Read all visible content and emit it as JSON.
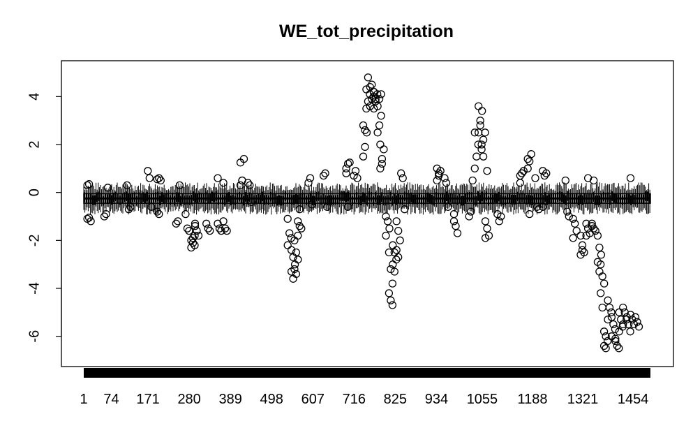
{
  "chart_data": {
    "type": "boxplot",
    "title": "WE_tot_precipitation",
    "xlabel": "",
    "ylabel": "",
    "n_boxes": 1500,
    "xlim": [
      1,
      1500
    ],
    "ylim": [
      -7,
      5
    ],
    "x_tick_labels": [
      "1",
      "74",
      "171",
      "280",
      "389",
      "498",
      "607",
      "716",
      "825",
      "934",
      "1055",
      "1188",
      "1321",
      "1454"
    ],
    "x_tick_positions": [
      1,
      74,
      171,
      280,
      389,
      498,
      607,
      716,
      825,
      934,
      1055,
      1188,
      1321,
      1454
    ],
    "y_ticks": [
      -6,
      -4,
      -2,
      0,
      2,
      4
    ],
    "y_tick_labels": [
      "-6",
      "-4",
      "-2",
      "0",
      "2",
      "4"
    ],
    "grid": false,
    "legend": "none",
    "box_band": {
      "median": -0.25,
      "q1": -0.45,
      "q3": -0.05,
      "whisker_low": -0.75,
      "whisker_high": 0.25
    },
    "outlier_groups": [
      {
        "x": 15,
        "values": [
          0.3,
          0.35,
          -1.2,
          -1.1,
          -1.05
        ]
      },
      {
        "x": 60,
        "values": [
          -1.0,
          -0.9,
          0.2
        ]
      },
      {
        "x": 120,
        "values": [
          0.3,
          -0.7,
          -0.6
        ]
      },
      {
        "x": 175,
        "values": [
          0.9,
          0.6,
          -0.6
        ]
      },
      {
        "x": 200,
        "values": [
          0.55,
          0.6,
          0.5,
          -0.8,
          -0.9
        ]
      },
      {
        "x": 250,
        "values": [
          -1.3,
          -1.2,
          0.3
        ]
      },
      {
        "x": 275,
        "values": [
          -0.9,
          -1.5,
          -1.6
        ]
      },
      {
        "x": 290,
        "values": [
          -2.0,
          -2.1,
          -2.2,
          -2.3,
          -1.9,
          -1.8
        ]
      },
      {
        "x": 300,
        "values": [
          -1.4,
          -1.6,
          -1.8,
          -1.3
        ]
      },
      {
        "x": 330,
        "values": [
          -1.3,
          -1.5,
          -1.6
        ]
      },
      {
        "x": 360,
        "values": [
          -1.3,
          -1.5,
          -1.6,
          0.6
        ]
      },
      {
        "x": 375,
        "values": [
          -1.2,
          -1.5,
          -1.6,
          0.4
        ]
      },
      {
        "x": 420,
        "values": [
          0.3,
          0.5,
          1.4,
          1.25,
          0.5
        ]
      },
      {
        "x": 440,
        "values": [
          0.4,
          0.3,
          -0.4
        ]
      },
      {
        "x": 545,
        "values": [
          -1.1,
          -1.7,
          -1.9,
          -2.2
        ]
      },
      {
        "x": 555,
        "values": [
          -2.4,
          -2.7,
          -3.0,
          -3.3,
          -3.6
        ]
      },
      {
        "x": 563,
        "values": [
          -2.0,
          -2.5,
          -2.8,
          -3.2,
          -3.4
        ]
      },
      {
        "x": 572,
        "values": [
          -1.2,
          -1.4,
          -1.5,
          -1.8,
          -0.7
        ]
      },
      {
        "x": 600,
        "values": [
          0.4,
          0.6,
          -0.5
        ]
      },
      {
        "x": 640,
        "values": [
          0.7,
          0.8,
          -0.6
        ]
      },
      {
        "x": 700,
        "values": [
          1.0,
          1.2,
          1.25,
          0.8,
          -0.6
        ]
      },
      {
        "x": 720,
        "values": [
          0.7,
          0.9,
          0.6
        ]
      },
      {
        "x": 745,
        "values": [
          1.5,
          1.9,
          2.5,
          2.8,
          2.6
        ]
      },
      {
        "x": 753,
        "values": [
          3.5,
          3.8,
          4.1,
          4.3,
          4.8
        ]
      },
      {
        "x": 763,
        "values": [
          3.6,
          3.9,
          4.2,
          4.4,
          4.5,
          4.0
        ]
      },
      {
        "x": 773,
        "values": [
          3.5,
          3.9,
          4.1,
          4.2,
          3.8
        ]
      },
      {
        "x": 783,
        "values": [
          2.5,
          2.8,
          3.2,
          3.6,
          3.9,
          4.1
        ]
      },
      {
        "x": 790,
        "values": [
          1.0,
          1.4,
          1.8,
          2.0,
          1.2
        ]
      },
      {
        "x": 805,
        "values": [
          -1.0,
          -1.2,
          -1.5,
          -1.8
        ]
      },
      {
        "x": 813,
        "values": [
          -2.5,
          -3.2,
          -3.8,
          -4.2,
          -4.5,
          -4.7
        ]
      },
      {
        "x": 823,
        "values": [
          -2.2,
          -2.5,
          -2.8,
          -3.0,
          -3.3
        ]
      },
      {
        "x": 833,
        "values": [
          -1.2,
          -1.6,
          -2.0,
          -2.4,
          -2.7
        ]
      },
      {
        "x": 845,
        "values": [
          0.8,
          0.6,
          -0.7
        ]
      },
      {
        "x": 940,
        "values": [
          0.5,
          0.7,
          0.9,
          1.0,
          0.8
        ]
      },
      {
        "x": 960,
        "values": [
          0.6,
          0.4,
          -0.6
        ]
      },
      {
        "x": 985,
        "values": [
          -1.2,
          -1.4,
          -1.7,
          -0.9
        ]
      },
      {
        "x": 1025,
        "values": [
          -1.0,
          -0.8,
          0.5
        ]
      },
      {
        "x": 1040,
        "values": [
          1.0,
          1.5,
          2.0,
          2.5
        ]
      },
      {
        "x": 1050,
        "values": [
          2.5,
          3.0,
          3.4,
          3.6,
          2.8
        ]
      },
      {
        "x": 1058,
        "values": [
          1.8,
          2.2,
          2.5,
          2.0,
          1.5
        ]
      },
      {
        "x": 1068,
        "values": [
          -1.2,
          -1.5,
          -1.8,
          -1.9,
          0.9
        ]
      },
      {
        "x": 1100,
        "values": [
          -0.9,
          -1.2,
          -1.0
        ]
      },
      {
        "x": 1160,
        "values": [
          0.4,
          0.8,
          0.9,
          0.7
        ]
      },
      {
        "x": 1180,
        "values": [
          1.0,
          1.3,
          1.6,
          1.4,
          -0.9
        ]
      },
      {
        "x": 1200,
        "values": [
          0.6,
          -0.6,
          -0.7
        ]
      },
      {
        "x": 1220,
        "values": [
          0.9,
          0.7,
          0.8,
          -0.6
        ]
      },
      {
        "x": 1280,
        "values": [
          0.5,
          -0.8,
          -1.0
        ]
      },
      {
        "x": 1300,
        "values": [
          -1.1,
          -1.3,
          -1.6,
          -1.9
        ]
      },
      {
        "x": 1320,
        "values": [
          -1.8,
          -2.2,
          -2.5,
          -2.6,
          -2.4
        ]
      },
      {
        "x": 1335,
        "values": [
          -1.3,
          -1.5,
          -1.7,
          -1.8,
          0.6
        ]
      },
      {
        "x": 1350,
        "values": [
          -1.4,
          -1.5,
          -1.6,
          -1.3,
          0.5
        ]
      },
      {
        "x": 1365,
        "values": [
          -1.8,
          -2.3,
          -2.6,
          -2.9,
          -3.3
        ]
      },
      {
        "x": 1373,
        "values": [
          -3.0,
          -3.5,
          -3.8,
          -4.2,
          -4.8
        ]
      },
      {
        "x": 1382,
        "values": [
          -5.8,
          -6.0,
          -6.2,
          -6.4,
          -6.5
        ]
      },
      {
        "x": 1392,
        "values": [
          -4.5,
          -4.8,
          -5.0,
          -5.3
        ]
      },
      {
        "x": 1402,
        "values": [
          -5.2,
          -5.5,
          -5.7,
          -6.0
        ]
      },
      {
        "x": 1412,
        "values": [
          -6.2,
          -6.4,
          -6.5,
          -6.1
        ]
      },
      {
        "x": 1422,
        "values": [
          -5.0,
          -5.3,
          -5.6,
          -5.8
        ]
      },
      {
        "x": 1432,
        "values": [
          -4.8,
          -5.0,
          -5.3,
          -5.5
        ]
      },
      {
        "x": 1442,
        "values": [
          -5.2,
          -5.5,
          -5.8
        ]
      },
      {
        "x": 1452,
        "values": [
          -5.1,
          -5.3,
          -5.5,
          0.6
        ]
      },
      {
        "x": 1465,
        "values": [
          -5.2,
          -5.4,
          -5.6
        ]
      }
    ]
  }
}
